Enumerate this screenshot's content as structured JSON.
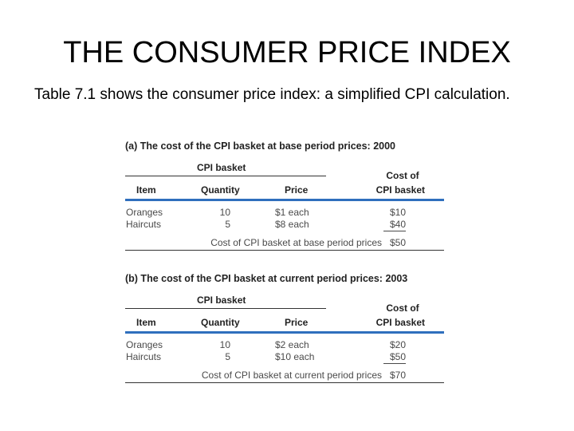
{
  "slide": {
    "title": "THE CONSUMER PRICE INDEX",
    "body": "Table 7.1 shows the consumer price index: a simplified CPI calculation."
  },
  "tables": [
    {
      "title": "(a) The cost of the CPI basket at base period prices: 2000",
      "group_header": "CPI basket",
      "cost_header_line1": "Cost of",
      "columns": {
        "item": "Item",
        "quantity": "Quantity",
        "price": "Price",
        "cost": "CPI basket"
      },
      "rows": [
        {
          "item": "Oranges",
          "quantity": "10",
          "price": "$1 each",
          "cost": "$10"
        },
        {
          "item": "Haircuts",
          "quantity": "5",
          "price": "$8 each",
          "cost": "$40"
        }
      ],
      "total_label": "Cost of CPI basket at base period prices",
      "total_value": "$50"
    },
    {
      "title": "(b) The cost of the CPI basket at current period prices: 2003",
      "group_header": "CPI basket",
      "cost_header_line1": "Cost of",
      "columns": {
        "item": "Item",
        "quantity": "Quantity",
        "price": "Price",
        "cost": "CPI basket"
      },
      "rows": [
        {
          "item": "Oranges",
          "quantity": "10",
          "price": "$2 each",
          "cost": "$20"
        },
        {
          "item": "Haircuts",
          "quantity": "5",
          "price": "$10 each",
          "cost": "$50"
        }
      ],
      "total_label": "Cost of CPI basket at current period prices",
      "total_value": "$70"
    }
  ],
  "colors": {
    "rule_blue": "#2f6fbd",
    "table_text": "#4a4a4a"
  }
}
